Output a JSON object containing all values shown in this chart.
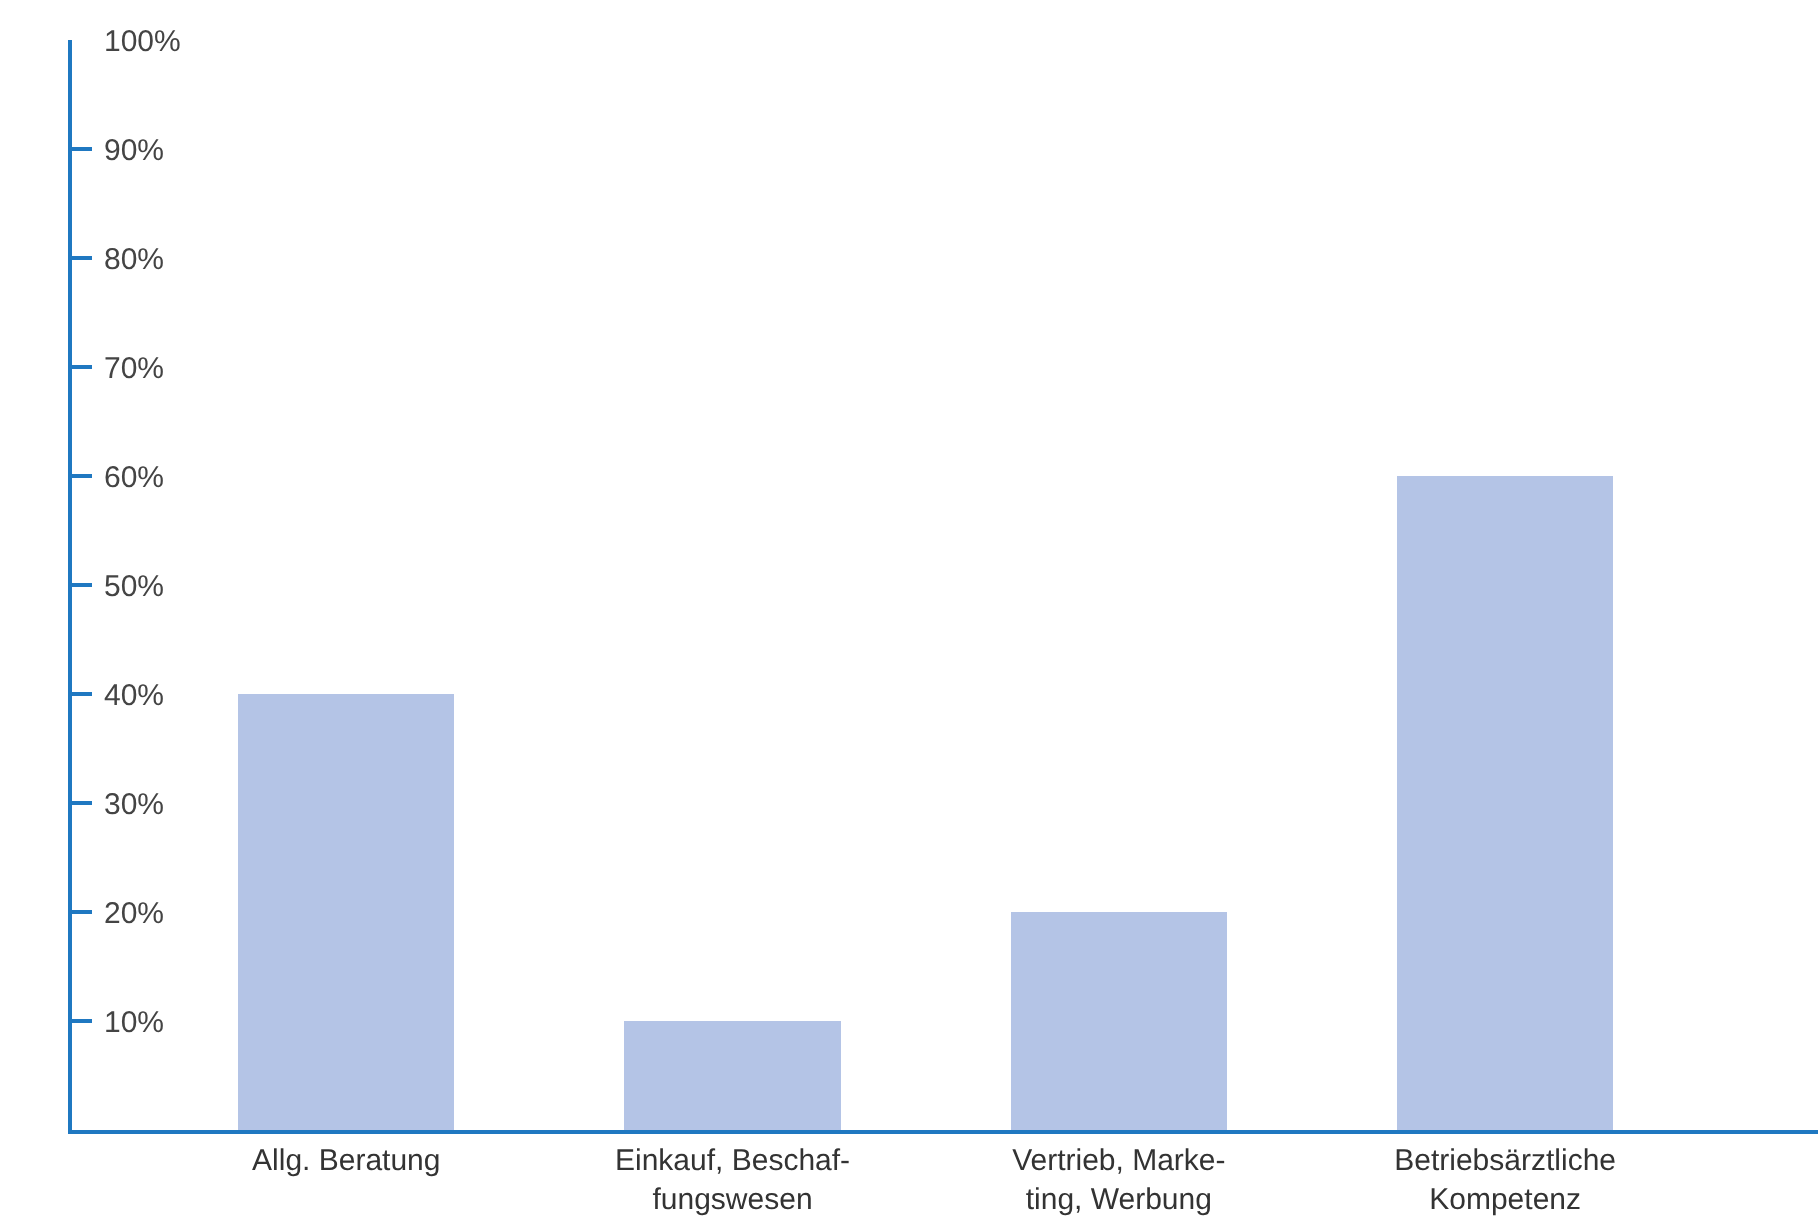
{
  "chart_data": {
    "type": "bar",
    "categories": [
      "Allg. Beratung",
      "Einkauf, Beschaf-\nfungswesen",
      "Vertrieb, Marke-\nting, Werbung",
      "Betriebsärztliche\nKompetenz"
    ],
    "values": [
      40,
      10,
      20,
      60
    ],
    "color": "#b4c4e6",
    "ylim": [
      0,
      100
    ],
    "yticks": [
      {
        "value": 10,
        "label": "10%"
      },
      {
        "value": 20,
        "label": "20%"
      },
      {
        "value": 30,
        "label": "30%"
      },
      {
        "value": 40,
        "label": "40%"
      },
      {
        "value": 50,
        "label": "50%"
      },
      {
        "value": 60,
        "label": "60%"
      },
      {
        "value": 70,
        "label": "70%"
      },
      {
        "value": 80,
        "label": "80%"
      },
      {
        "value": 90,
        "label": "90%"
      },
      {
        "value": 100,
        "label": "100%"
      }
    ],
    "grid": false,
    "legend": false
  }
}
